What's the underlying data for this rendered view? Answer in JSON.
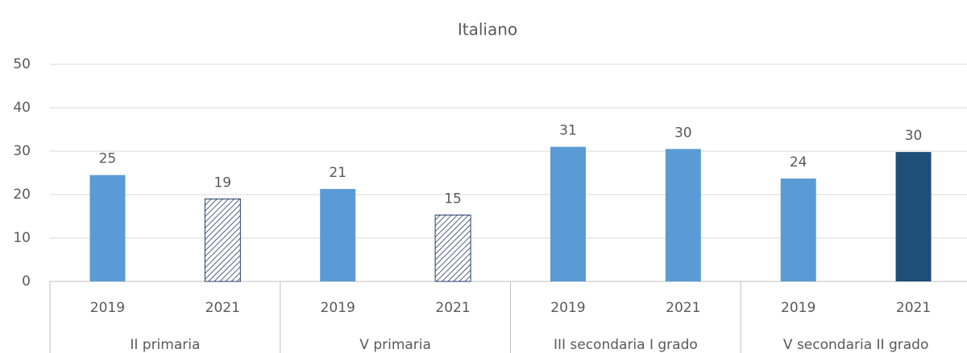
{
  "chart_data": {
    "type": "bar",
    "title": "Italiano",
    "categories": [
      "2019",
      "2021",
      "2019",
      "2021",
      "2019",
      "2021",
      "2019",
      "2021"
    ],
    "groups": [
      "II primaria",
      "V primaria",
      "III secondaria I grado",
      "V secondaria II grado"
    ],
    "values": [
      24.5,
      19,
      21.3,
      15.3,
      31,
      30.5,
      23.7,
      29.8
    ],
    "value_labels": [
      "25",
      "19",
      "21",
      "15",
      "31",
      "30",
      "24",
      "30"
    ],
    "colors": [
      "#5b9bd5",
      "#1f3864",
      "#5b9bd5",
      "#1f3864",
      "#5b9bd5",
      "#5b9bd5",
      "#5b9bd5",
      "#1f4e79"
    ],
    "hatch": [
      false,
      true,
      false,
      true,
      false,
      false,
      false,
      false
    ],
    "ylim": [
      0,
      50
    ],
    "yticks": [
      0,
      10,
      20,
      30,
      40,
      50
    ],
    "grid": true
  }
}
